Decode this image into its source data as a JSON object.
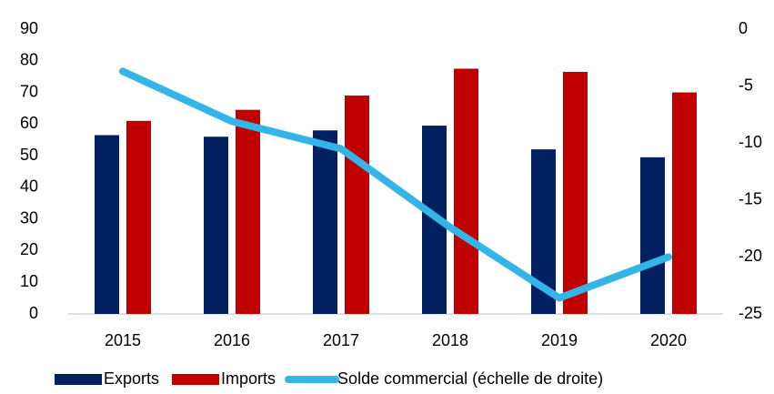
{
  "chart_data": {
    "type": "bar",
    "categories": [
      "2015",
      "2016",
      "2017",
      "2018",
      "2019",
      "2020"
    ],
    "series": [
      {
        "name": "Exports",
        "color": "#002060",
        "values": [
          56.5,
          56,
          58,
          59.5,
          52,
          49.5
        ]
      },
      {
        "name": "Imports",
        "color": "#c00000",
        "values": [
          61,
          64.5,
          69,
          77.5,
          76.5,
          70
        ]
      },
      {
        "name": "Solde commercial (échelle de droite)",
        "color": "#33b5e8",
        "type": "line",
        "axis": "y2",
        "values": [
          -3.7,
          -8.1,
          -10.5,
          -17.4,
          -23.6,
          -20
        ]
      }
    ],
    "ylim": [
      0,
      90
    ],
    "yticks": [
      0,
      10,
      20,
      30,
      40,
      50,
      60,
      70,
      80,
      90
    ],
    "y2lim": [
      -25,
      0
    ],
    "y2ticks": [
      -25,
      -20,
      -15,
      -10,
      -5,
      0
    ],
    "legend": "bottom"
  }
}
